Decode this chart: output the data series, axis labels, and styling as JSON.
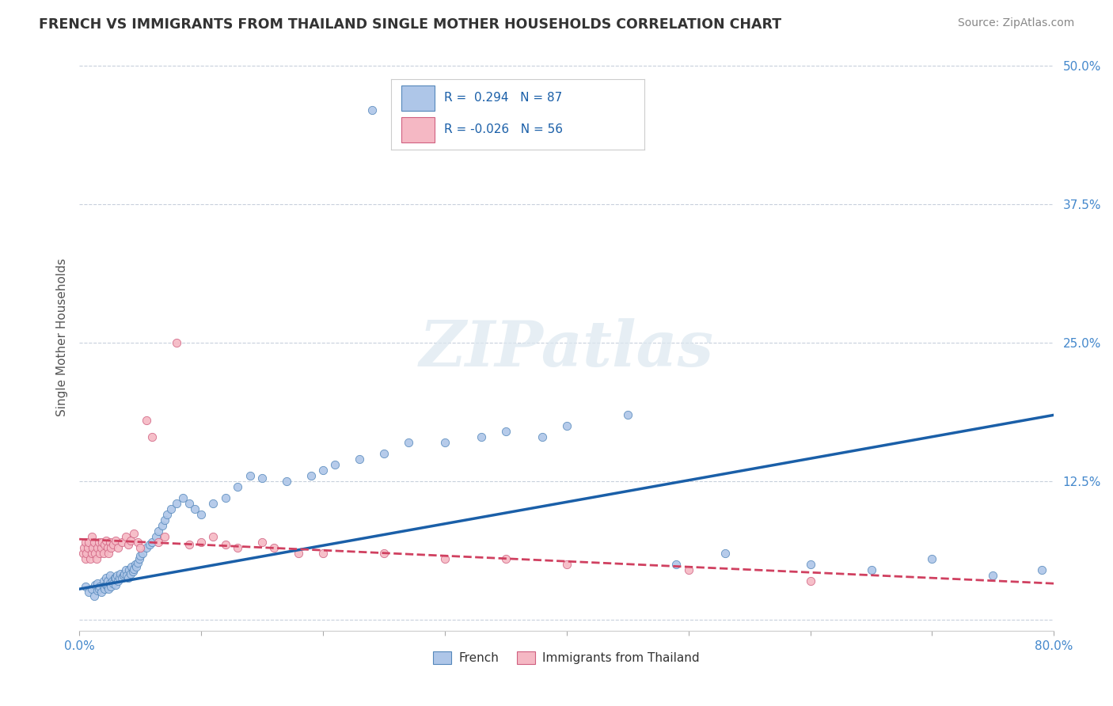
{
  "title": "FRENCH VS IMMIGRANTS FROM THAILAND SINGLE MOTHER HOUSEHOLDS CORRELATION CHART",
  "source": "Source: ZipAtlas.com",
  "ylabel": "Single Mother Households",
  "xlim": [
    0.0,
    0.8
  ],
  "ylim": [
    -0.01,
    0.52
  ],
  "yticks": [
    0.0,
    0.125,
    0.25,
    0.375,
    0.5
  ],
  "ytick_labels": [
    "",
    "12.5%",
    "25.0%",
    "37.5%",
    "50.0%"
  ],
  "xticks": [
    0.0,
    0.1,
    0.2,
    0.3,
    0.4,
    0.5,
    0.6,
    0.7,
    0.8
  ],
  "xtick_labels": [
    "0.0%",
    "",
    "",
    "",
    "",
    "",
    "",
    "",
    "80.0%"
  ],
  "french_R": 0.294,
  "french_N": 87,
  "thai_R": -0.026,
  "thai_N": 56,
  "french_color": "#aec6e8",
  "french_edge_color": "#5588bb",
  "french_line_color": "#1a5fa8",
  "thai_color": "#f5b8c4",
  "thai_edge_color": "#d06080",
  "thai_line_color": "#d04060",
  "watermark": "ZIPatlas",
  "background_color": "#ffffff",
  "grid_color": "#c8d0dc",
  "french_x": [
    0.005,
    0.008,
    0.01,
    0.012,
    0.013,
    0.015,
    0.015,
    0.016,
    0.017,
    0.018,
    0.02,
    0.02,
    0.021,
    0.022,
    0.022,
    0.023,
    0.023,
    0.024,
    0.025,
    0.025,
    0.026,
    0.027,
    0.028,
    0.029,
    0.03,
    0.03,
    0.031,
    0.032,
    0.033,
    0.034,
    0.035,
    0.036,
    0.037,
    0.038,
    0.039,
    0.04,
    0.041,
    0.042,
    0.043,
    0.044,
    0.045,
    0.046,
    0.047,
    0.048,
    0.049,
    0.05,
    0.052,
    0.055,
    0.058,
    0.06,
    0.063,
    0.065,
    0.068,
    0.07,
    0.072,
    0.075,
    0.08,
    0.085,
    0.09,
    0.095,
    0.1,
    0.11,
    0.12,
    0.13,
    0.14,
    0.15,
    0.17,
    0.19,
    0.2,
    0.21,
    0.23,
    0.25,
    0.27,
    0.3,
    0.33,
    0.35,
    0.38,
    0.4,
    0.45,
    0.49,
    0.53,
    0.6,
    0.65,
    0.7,
    0.75,
    0.79,
    0.24
  ],
  "french_y": [
    0.03,
    0.025,
    0.028,
    0.022,
    0.032,
    0.027,
    0.033,
    0.028,
    0.03,
    0.025,
    0.035,
    0.03,
    0.028,
    0.032,
    0.038,
    0.03,
    0.035,
    0.028,
    0.033,
    0.04,
    0.03,
    0.035,
    0.033,
    0.038,
    0.032,
    0.038,
    0.04,
    0.035,
    0.038,
    0.042,
    0.038,
    0.04,
    0.042,
    0.045,
    0.04,
    0.038,
    0.045,
    0.042,
    0.048,
    0.044,
    0.046,
    0.05,
    0.048,
    0.052,
    0.055,
    0.058,
    0.06,
    0.065,
    0.068,
    0.07,
    0.075,
    0.08,
    0.085,
    0.09,
    0.095,
    0.1,
    0.105,
    0.11,
    0.105,
    0.1,
    0.095,
    0.105,
    0.11,
    0.12,
    0.13,
    0.128,
    0.125,
    0.13,
    0.135,
    0.14,
    0.145,
    0.15,
    0.16,
    0.16,
    0.165,
    0.17,
    0.165,
    0.175,
    0.185,
    0.05,
    0.06,
    0.05,
    0.045,
    0.055,
    0.04,
    0.045,
    0.46
  ],
  "thai_x": [
    0.003,
    0.004,
    0.005,
    0.005,
    0.006,
    0.007,
    0.008,
    0.009,
    0.01,
    0.01,
    0.011,
    0.012,
    0.013,
    0.014,
    0.015,
    0.016,
    0.017,
    0.018,
    0.019,
    0.02,
    0.021,
    0.022,
    0.023,
    0.024,
    0.025,
    0.026,
    0.028,
    0.03,
    0.032,
    0.035,
    0.038,
    0.04,
    0.042,
    0.045,
    0.048,
    0.05,
    0.055,
    0.06,
    0.065,
    0.07,
    0.08,
    0.09,
    0.1,
    0.11,
    0.12,
    0.13,
    0.15,
    0.16,
    0.18,
    0.2,
    0.25,
    0.3,
    0.35,
    0.4,
    0.5,
    0.6
  ],
  "thai_y": [
    0.06,
    0.065,
    0.055,
    0.07,
    0.06,
    0.065,
    0.07,
    0.055,
    0.06,
    0.075,
    0.065,
    0.07,
    0.06,
    0.055,
    0.065,
    0.07,
    0.06,
    0.065,
    0.07,
    0.06,
    0.068,
    0.072,
    0.065,
    0.06,
    0.07,
    0.065,
    0.068,
    0.072,
    0.065,
    0.07,
    0.075,
    0.068,
    0.072,
    0.078,
    0.07,
    0.065,
    0.18,
    0.165,
    0.07,
    0.075,
    0.25,
    0.068,
    0.07,
    0.075,
    0.068,
    0.065,
    0.07,
    0.065,
    0.06,
    0.06,
    0.06,
    0.055,
    0.055,
    0.05,
    0.045,
    0.035
  ],
  "french_line_x0": 0.0,
  "french_line_y0": 0.028,
  "french_line_x1": 0.8,
  "french_line_y1": 0.185,
  "thai_line_x0": 0.0,
  "thai_line_y0": 0.073,
  "thai_line_x1": 0.8,
  "thai_line_y1": 0.033
}
